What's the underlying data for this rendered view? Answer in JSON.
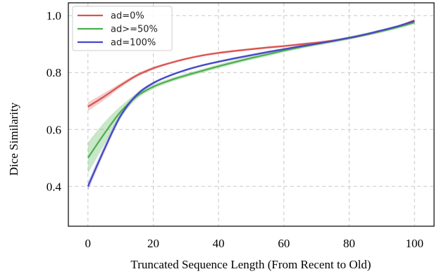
{
  "chart_data": {
    "type": "line",
    "xlabel": "Truncated Sequence Length (From Recent to Old)",
    "ylabel": "Dice Similarity",
    "xlim": [
      -6,
      106
    ],
    "ylim": [
      0.26,
      1.045
    ],
    "xticks": [
      0,
      20,
      40,
      60,
      80,
      100
    ],
    "yticks": [
      0.4,
      0.6,
      0.8,
      1.0
    ],
    "xtick_labels": [
      "0",
      "20",
      "40",
      "60",
      "80",
      "100"
    ],
    "ytick_labels": [
      "0.4",
      "0.6",
      "0.8",
      "1.0"
    ],
    "grid": true,
    "legend_position": "top-left",
    "x": [
      0,
      5,
      10,
      15,
      20,
      25,
      30,
      35,
      40,
      45,
      50,
      55,
      60,
      65,
      70,
      75,
      80,
      85,
      90,
      95,
      100
    ],
    "series": [
      {
        "name": "ad=0%",
        "color": "#d9534f",
        "values": [
          0.68,
          0.716,
          0.755,
          0.79,
          0.815,
          0.833,
          0.848,
          0.86,
          0.869,
          0.876,
          0.882,
          0.888,
          0.893,
          0.899,
          0.905,
          0.912,
          0.921,
          0.933,
          0.946,
          0.962,
          0.983
        ],
        "band": [
          0.015,
          0.012,
          0.008,
          0.006,
          0.005,
          0.004,
          0.004,
          0.004,
          0.004,
          0.004,
          0.004,
          0.004,
          0.004,
          0.004,
          0.004,
          0.004,
          0.004,
          0.004,
          0.004,
          0.004,
          0.005
        ]
      },
      {
        "name": "ad>=50%",
        "color": "#4cae4c",
        "values": [
          0.5,
          0.585,
          0.662,
          0.717,
          0.75,
          0.772,
          0.79,
          0.806,
          0.822,
          0.837,
          0.851,
          0.864,
          0.877,
          0.889,
          0.9,
          0.91,
          0.921,
          0.933,
          0.946,
          0.96,
          0.976
        ],
        "band": [
          0.055,
          0.04,
          0.02,
          0.01,
          0.008,
          0.007,
          0.007,
          0.007,
          0.007,
          0.007,
          0.007,
          0.007,
          0.006,
          0.006,
          0.006,
          0.006,
          0.006,
          0.006,
          0.006,
          0.006,
          0.006
        ]
      },
      {
        "name": "ad=100%",
        "color": "#4646c8",
        "values": [
          0.4,
          0.53,
          0.648,
          0.722,
          0.763,
          0.789,
          0.809,
          0.825,
          0.838,
          0.85,
          0.861,
          0.872,
          0.882,
          0.892,
          0.901,
          0.911,
          0.922,
          0.934,
          0.948,
          0.963,
          0.981
        ],
        "band": [
          0.015,
          0.012,
          0.01,
          0.007,
          0.005,
          0.004,
          0.004,
          0.004,
          0.004,
          0.004,
          0.004,
          0.004,
          0.004,
          0.004,
          0.004,
          0.004,
          0.004,
          0.004,
          0.004,
          0.004,
          0.005
        ]
      }
    ]
  }
}
